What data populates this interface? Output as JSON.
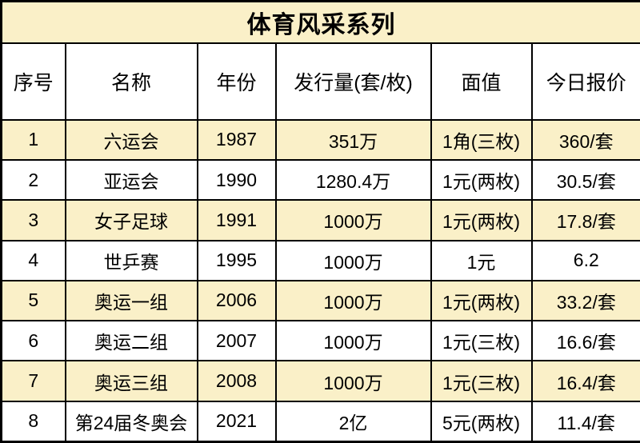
{
  "colors": {
    "highlight_row_background": "#FAF0C8",
    "plain_row_background": "#FFFFFF",
    "border": "#000000",
    "text": "#000000"
  },
  "chart_data": {
    "type": "table",
    "title": "体育风采系列",
    "columns": [
      "序号",
      "名称",
      "年份",
      "发行量(套/枚)",
      "面值",
      "今日报价"
    ],
    "rows": [
      [
        "1",
        "六运会",
        "1987",
        "351万",
        "1角(三枚)",
        "360/套"
      ],
      [
        "2",
        "亚运会",
        "1990",
        "1280.4万",
        "1元(两枚)",
        "30.5/套"
      ],
      [
        "3",
        "女子足球",
        "1991",
        "1000万",
        "1元(两枚)",
        "17.8/套"
      ],
      [
        "4",
        "世乒赛",
        "1995",
        "1000万",
        "1元",
        "6.2"
      ],
      [
        "5",
        "奥运一组",
        "2006",
        "1000万",
        "1元(两枚)",
        "33.2/套"
      ],
      [
        "6",
        "奥运二组",
        "2007",
        "1000万",
        "1元(三枚)",
        "16.6/套"
      ],
      [
        "7",
        "奥运三组",
        "2008",
        "1000万",
        "1元(三枚)",
        "16.4/套"
      ],
      [
        "8",
        "第24届冬奥会",
        "2021",
        "2亿",
        "5元(两枚)",
        "11.4/套"
      ]
    ],
    "layout_hints": {
      "striped_rows": "odd rows cream (#FAF0C8), even rows white",
      "grid": "on",
      "title_band_background": "#FAF0C8"
    }
  }
}
